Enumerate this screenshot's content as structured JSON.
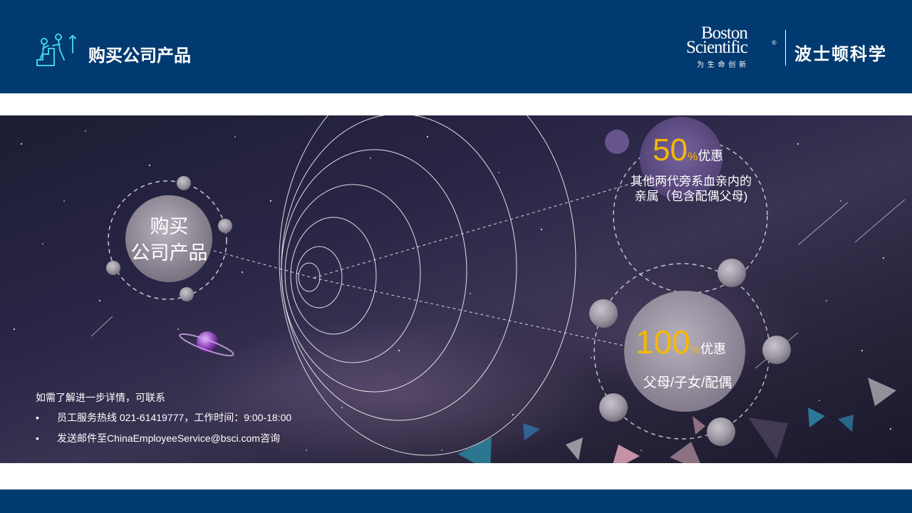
{
  "header": {
    "title": "购买公司产品",
    "icon": "teamwork-climb-icon",
    "logo": {
      "word1": "Boston",
      "word2": "Scientific",
      "registered": "®",
      "tagline": "为 生 命 创 新",
      "chinese_name": "波士顿科学"
    }
  },
  "hub": {
    "line1": "购买",
    "line2": "公司产品"
  },
  "offer_50": {
    "value": "50",
    "percent": "%",
    "suffix": "优惠",
    "desc_line1": "其他两代旁系血亲内的",
    "desc_line2": "亲属（包含配偶父母)"
  },
  "offer_100": {
    "value": "100",
    "percent": "%",
    "suffix": "优惠",
    "desc": "父母/子女/配偶"
  },
  "contact": {
    "intro": "如需了解进一步详情，可联系",
    "items": [
      "员工服务热线 021-61419777，工作时间：9:00-18:00",
      "发送邮件至ChinaEmployeeService@bsci.com咨询"
    ],
    "bullet": "•"
  },
  "colors": {
    "brand_navy": "#003a70",
    "accent_gold": "#f5b800",
    "text_white": "#ffffff"
  }
}
